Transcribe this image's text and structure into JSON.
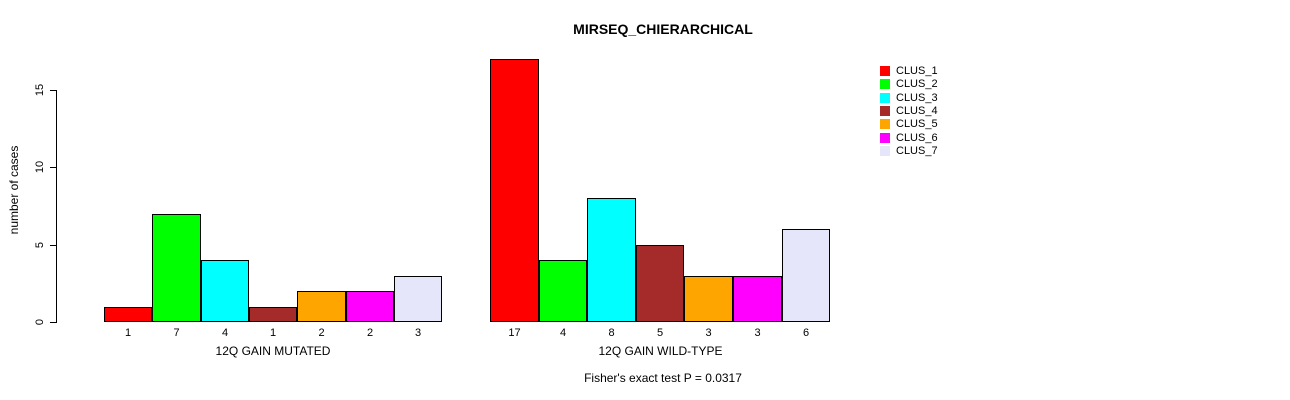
{
  "chart_data": {
    "type": "bar",
    "title": "MIRSEQ_CHIERARCHICAL",
    "ylabel": "number of cases",
    "yticks": [
      0,
      5,
      10,
      15
    ],
    "ylim": [
      0,
      17
    ],
    "grid": false,
    "legend_position": "top-right",
    "series": [
      {
        "name": "CLUS_1",
        "color": "#FF0000"
      },
      {
        "name": "CLUS_2",
        "color": "#00FF00"
      },
      {
        "name": "CLUS_3",
        "color": "#00FFFF"
      },
      {
        "name": "CLUS_4",
        "color": "#A52A2A"
      },
      {
        "name": "CLUS_5",
        "color": "#FFA500"
      },
      {
        "name": "CLUS_6",
        "color": "#FF00FF"
      },
      {
        "name": "CLUS_7",
        "color": "#E6E6FA"
      }
    ],
    "groups": [
      {
        "label": "12Q GAIN MUTATED",
        "values": [
          1,
          7,
          4,
          1,
          2,
          2,
          3
        ]
      },
      {
        "label": "12Q GAIN WILD-TYPE",
        "values": [
          17,
          4,
          8,
          5,
          3,
          3,
          6
        ]
      }
    ],
    "footer": "Fisher's exact test P = 0.0317",
    "colors": {
      "axis": "#000000",
      "bar_border": "#000000",
      "background": "#FFFFFF",
      "text": "#000000"
    }
  }
}
